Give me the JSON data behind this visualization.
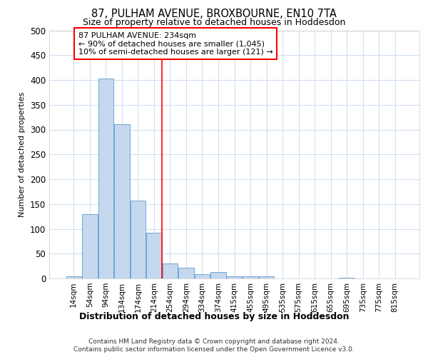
{
  "title": "87, PULHAM AVENUE, BROXBOURNE, EN10 7TA",
  "subtitle": "Size of property relative to detached houses in Hoddesdon",
  "xlabel": "Distribution of detached houses by size in Hoddesdon",
  "ylabel": "Number of detached properties",
  "footer1": "Contains HM Land Registry data © Crown copyright and database right 2024.",
  "footer2": "Contains public sector information licensed under the Open Government Licence v3.0.",
  "bar_labels": [
    "14sqm",
    "54sqm",
    "94sqm",
    "134sqm",
    "174sqm",
    "214sqm",
    "254sqm",
    "294sqm",
    "334sqm",
    "374sqm",
    "415sqm",
    "455sqm",
    "495sqm",
    "535sqm",
    "575sqm",
    "615sqm",
    "655sqm",
    "695sqm",
    "735sqm",
    "775sqm",
    "815sqm"
  ],
  "bar_values": [
    5,
    130,
    403,
    311,
    157,
    92,
    30,
    21,
    9,
    13,
    5,
    5,
    4,
    0,
    0,
    0,
    0,
    2,
    0,
    0,
    0
  ],
  "bar_color": "#c5d8ee",
  "bar_edge_color": "#5b9bd5",
  "grid_color": "#d0dff0",
  "ylim": [
    0,
    500
  ],
  "yticks": [
    0,
    50,
    100,
    150,
    200,
    250,
    300,
    350,
    400,
    450,
    500
  ],
  "property_size_label": "87 PULHAM AVENUE: 234sqm",
  "annotation_line1": "← 90% of detached houses are smaller (1,045)",
  "annotation_line2": "10% of semi-detached houses are larger (121) →",
  "vline_x_index": 5.5,
  "bg_color": "#ffffff",
  "plot_bg_color": "#ffffff"
}
